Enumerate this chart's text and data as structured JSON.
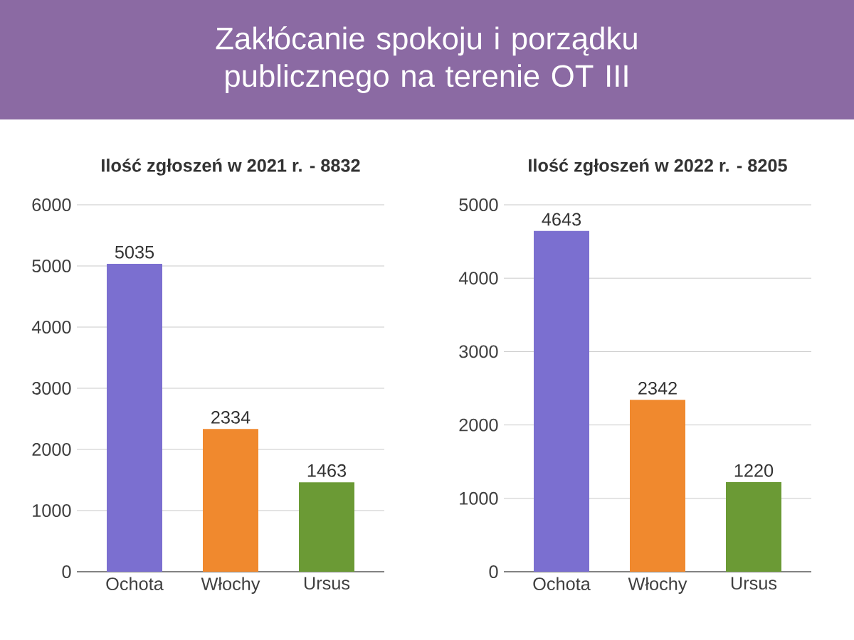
{
  "chart_data": [
    {
      "type": "bar",
      "title": "Zakłócanie spokoju i porządku publicznego na terenie OT III",
      "subtitle": "Ilość zgłoszeń w 2021 r. - 8832",
      "categories": [
        "Ochota",
        "Włochy",
        "Ursus"
      ],
      "values": [
        5035,
        2334,
        1463
      ],
      "colors": [
        "#7b6fd0",
        "#f0892e",
        "#6b9a35"
      ],
      "ylim": [
        0,
        6000
      ],
      "yticks": [
        0,
        1000,
        2000,
        3000,
        4000,
        5000,
        6000
      ],
      "grid": "y",
      "data_labels": true
    },
    {
      "type": "bar",
      "subtitle": "Ilość zgłoszeń w 2022 r. - 8205",
      "categories": [
        "Ochota",
        "Włochy",
        "Ursus"
      ],
      "values": [
        4643,
        2342,
        1220
      ],
      "colors": [
        "#7b6fd0",
        "#f0892e",
        "#6b9a35"
      ],
      "ylim": [
        0,
        5000
      ],
      "yticks": [
        0,
        1000,
        2000,
        3000,
        4000,
        5000
      ],
      "grid": "y",
      "data_labels": true
    }
  ]
}
